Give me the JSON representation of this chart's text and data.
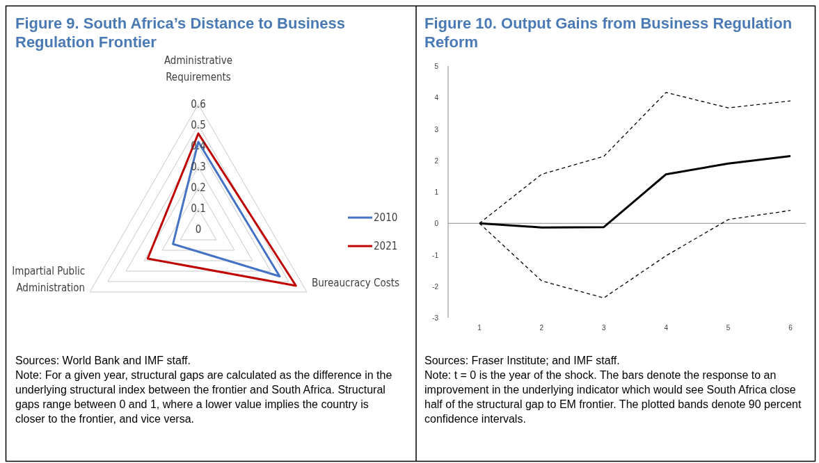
{
  "chart_data": [
    {
      "type": "radar",
      "title": "Figure 9. South Africa’s Distance to Business Regulation Frontier",
      "categories": [
        "Administrative Requirements",
        "Bureaucracy Costs",
        "Impartial Public Administration"
      ],
      "series": [
        {
          "name": "2010",
          "color": "#4472c4",
          "values": [
            0.42,
            0.45,
            0.14
          ]
        },
        {
          "name": "2021",
          "color": "#c00000",
          "values": [
            0.46,
            0.54,
            0.28
          ]
        }
      ],
      "ylim": [
        0,
        0.6
      ],
      "yticks": [
        0,
        0.1,
        0.2,
        0.3,
        0.4,
        0.5,
        0.6
      ],
      "legend": "right",
      "annotations": [
        "Sources: World Bank and IMF staff.",
        "Note: For a given year, structural gaps are calculated as the difference in the underlying structural index between the frontier and South Africa. Structural gaps range between 0 and 1, where a lower value implies the country is closer to the frontier, and vice versa."
      ]
    },
    {
      "type": "line",
      "title": "Figure 10. Output Gains from Business Regulation Reform",
      "categories": [
        "1",
        "2",
        "3",
        "4",
        "5",
        "6"
      ],
      "series": [
        {
          "color": "#000000",
          "line_style": "solid",
          "values": [
            0,
            -0.13,
            -0.12,
            1.56,
            1.9,
            2.14
          ]
        },
        {
          "color": "#000000",
          "line_style": "dashed",
          "values": [
            0,
            1.56,
            2.13,
            4.16,
            3.67,
            3.89
          ]
        },
        {
          "color": "#000000",
          "line_style": "dashed",
          "values": [
            0,
            -1.83,
            -2.37,
            -1.03,
            0.12,
            0.41
          ]
        }
      ],
      "ylim": [
        -3,
        5
      ],
      "yticks": [
        -3,
        -2,
        -1,
        0,
        1,
        2,
        3,
        4,
        5
      ],
      "ref_lines": [
        {
          "axis": "y",
          "value": 0,
          "color": "#888888"
        }
      ],
      "legend": false,
      "marker": "none",
      "annotations": [
        "Sources: Fraser Institute; and IMF staff.",
        "Note: t = 0 is the year of the shock. The bars denote the response to an improvement in the underlying indicator which would see South Africa close half of the structural gap to EM frontier. The plotted bands denote 90 percent confidence intervals."
      ]
    }
  ]
}
